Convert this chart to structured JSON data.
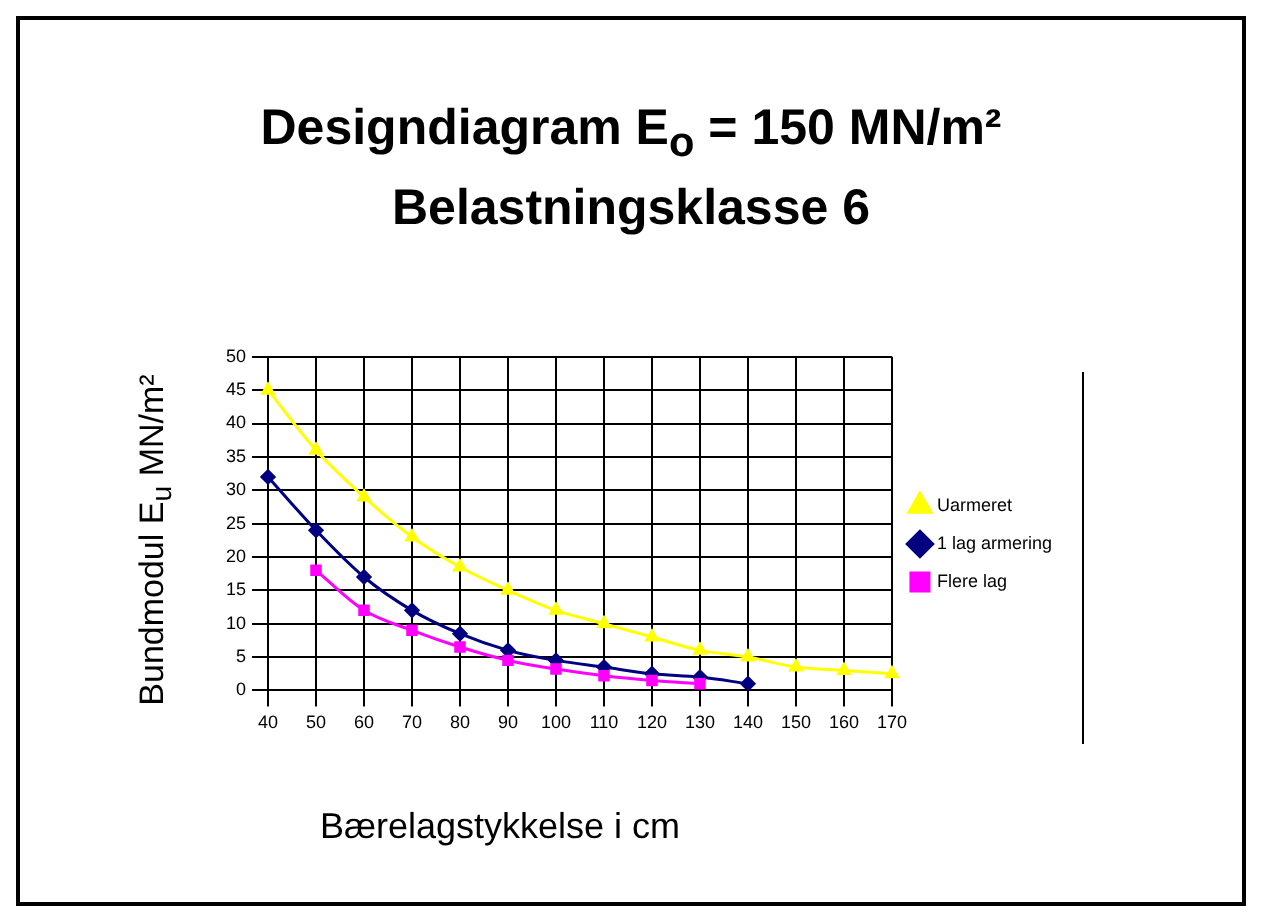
{
  "chart_data": {
    "type": "line",
    "title": [
      "Designdiagram E$_{o}$ = 150 MN/m²",
      "Belastningsklasse 6"
    ],
    "xlabel": "Bærelagstykkelse i cm",
    "ylabel": "Bundmodul E$_{u}$ MN/m²",
    "categories": [
      "40",
      "50",
      "60",
      "70",
      "80",
      "90",
      "100",
      "110",
      "120",
      "130",
      "140",
      "150",
      "160",
      "170"
    ],
    "ylim": [
      0,
      50
    ],
    "yticks": [
      0,
      5,
      10,
      15,
      20,
      25,
      30,
      35,
      40,
      45,
      50
    ],
    "grid": true,
    "legend": "right",
    "line_style": "solid",
    "series": [
      {
        "name": "Uarmeret",
        "color": "#ffff00",
        "marker": "triangle",
        "values": [
          45,
          36,
          29,
          23,
          18.5,
          15,
          12,
          10,
          8,
          6,
          5,
          3.5,
          3,
          2.5
        ]
      },
      {
        "name": "1 lag armering",
        "color": "#000080",
        "marker": "diamond",
        "values": [
          32,
          24,
          17,
          12,
          8.5,
          6,
          4.5,
          3.5,
          2.5,
          2,
          1,
          null,
          null,
          null
        ]
      },
      {
        "name": "Flere lag",
        "color": "#ff00ff",
        "marker": "square",
        "values": [
          null,
          18,
          12,
          9,
          6.5,
          4.5,
          3.2,
          2.2,
          1.5,
          1,
          null,
          null,
          null,
          null
        ]
      }
    ]
  }
}
